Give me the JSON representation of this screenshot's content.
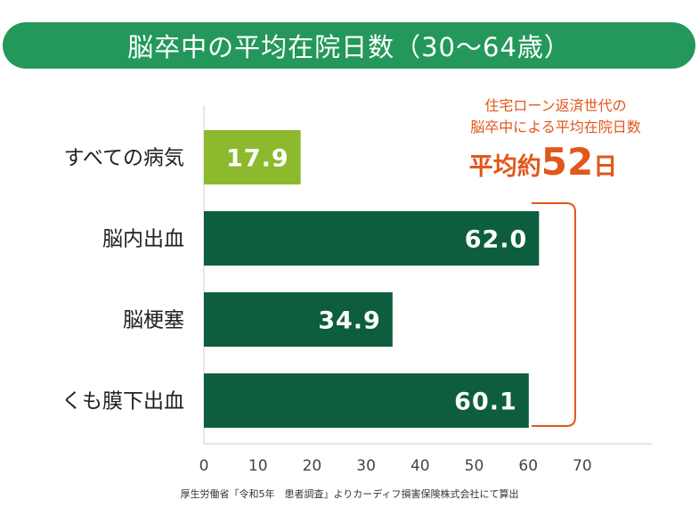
{
  "chart_data": {
    "type": "bar",
    "orientation": "horizontal",
    "title": "脳卒中の平均在院日数（30～64歳）",
    "categories": [
      "すべての病気",
      "脳内出血",
      "脳梗塞",
      "くも膜下出血"
    ],
    "values": [
      17.9,
      62.0,
      34.9,
      60.1
    ],
    "value_labels": [
      "17.9",
      "62.0",
      "34.9",
      "60.1"
    ],
    "bar_colors": [
      "#8db92e",
      "#0d5e3e",
      "#0d5e3e",
      "#0d5e3e"
    ],
    "xlim": [
      0,
      70
    ],
    "xticks": [
      0,
      10,
      20,
      30,
      40,
      50,
      60,
      70
    ],
    "grid": false,
    "annotation": {
      "line1": "住宅ローン返済世代の",
      "line2": "脳卒中による平均在院日数",
      "prefix": "平均約",
      "number": "52",
      "suffix": "日",
      "color": "#e2571b"
    }
  },
  "source": "厚生労働省「令和5年　患者調査」よりカーディフ損害保険株式会社にて算出",
  "colors": {
    "title_bg": "#23985a",
    "accent": "#e2571b"
  }
}
